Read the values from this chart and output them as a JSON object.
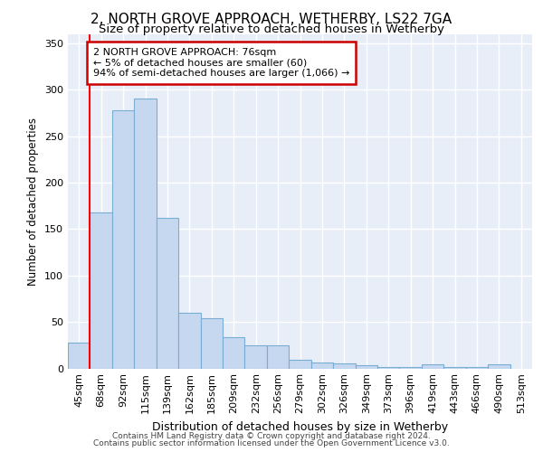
{
  "title1": "2, NORTH GROVE APPROACH, WETHERBY, LS22 7GA",
  "title2": "Size of property relative to detached houses in Wetherby",
  "xlabel": "Distribution of detached houses by size in Wetherby",
  "ylabel": "Number of detached properties",
  "categories": [
    "45sqm",
    "68sqm",
    "92sqm",
    "115sqm",
    "139sqm",
    "162sqm",
    "185sqm",
    "209sqm",
    "232sqm",
    "256sqm",
    "279sqm",
    "302sqm",
    "326sqm",
    "349sqm",
    "373sqm",
    "396sqm",
    "419sqm",
    "443sqm",
    "466sqm",
    "490sqm",
    "513sqm"
  ],
  "values": [
    28,
    168,
    278,
    290,
    162,
    60,
    54,
    34,
    25,
    25,
    9,
    6,
    5,
    3,
    1,
    1,
    4,
    1,
    1,
    4,
    0
  ],
  "bar_color": "#c5d8f0",
  "bar_edge_color": "#7aadd4",
  "red_line_index": 1,
  "ann_line1": "2 NORTH GROVE APPROACH: 76sqm",
  "ann_line2": "← 5% of detached houses are smaller (60)",
  "ann_line3": "94% of semi-detached houses are larger (1,066) →",
  "ann_box_fc": "#ffffff",
  "ann_box_ec": "#cc0000",
  "footer1": "Contains HM Land Registry data © Crown copyright and database right 2024.",
  "footer2": "Contains public sector information licensed under the Open Government Licence v3.0.",
  "ylim_max": 360,
  "yticks": [
    0,
    50,
    100,
    150,
    200,
    250,
    300,
    350
  ],
  "bg_color": "#e8eef8",
  "grid_color": "#ffffff",
  "title1_fontsize": 11,
  "title2_fontsize": 9.5,
  "ylabel_fontsize": 8.5,
  "xlabel_fontsize": 9,
  "tick_fontsize": 8,
  "xtick_fontsize": 7.5,
  "footer_fontsize": 6.5,
  "ann_fontsize": 8
}
